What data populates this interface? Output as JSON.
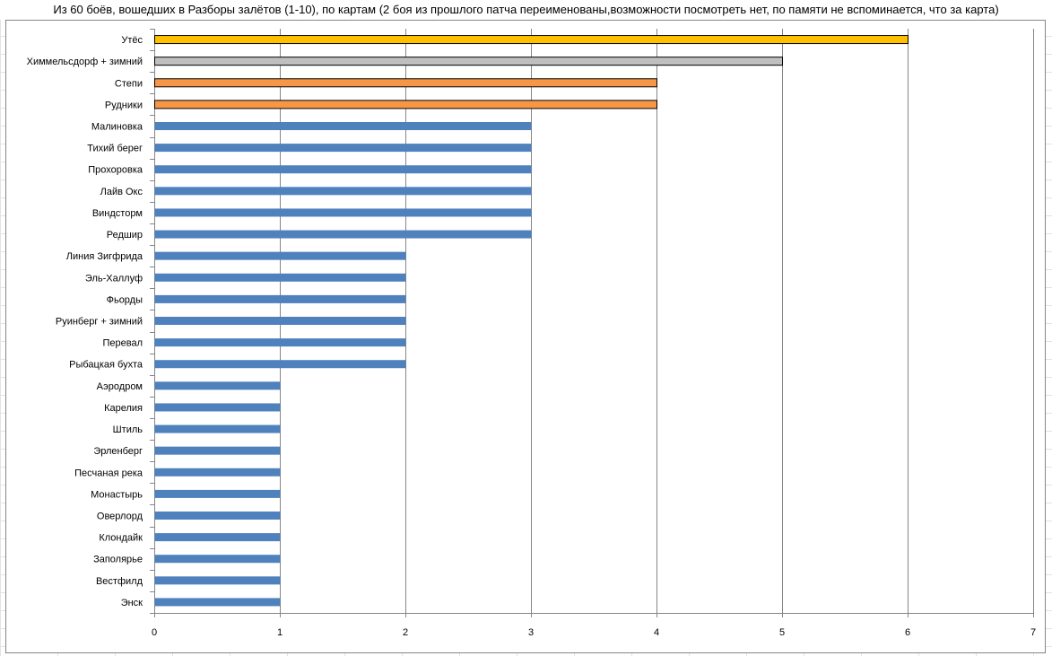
{
  "chart_data": {
    "type": "bar",
    "orientation": "horizontal",
    "title": "Из 60 боёв, вошедших в Разборы залётов (1-10), по картам (2 боя из прошлого патча переименованы,возможности посмотреть нет, по памяти не вспоминается, что за карта)",
    "xlabel": "",
    "ylabel": "",
    "xlim": [
      0,
      7
    ],
    "xticks": [
      0,
      1,
      2,
      3,
      4,
      5,
      6,
      7
    ],
    "grid": "vertical",
    "legend": "none",
    "categories": [
      "Утёс",
      "Химмельсдорф + зимний",
      "Степи",
      "Рудники",
      "Малиновка",
      "Тихий берег",
      "Прохоровка",
      "Лайв Окс",
      "Виндсторм",
      "Редшир",
      "Линия Зигфрида",
      "Эль-Халлуф",
      "Фьорды",
      "Руинберг + зимний",
      "Перевал",
      "Рыбацкая бухта",
      "Аэродром",
      "Карелия",
      "Штиль",
      "Эрленберг",
      "Песчаная река",
      "Монастырь",
      "Оверлорд",
      "Клондайк",
      "Заполярье",
      "Вестфилд",
      "Энск"
    ],
    "values": [
      6,
      5,
      4,
      4,
      3,
      3,
      3,
      3,
      3,
      3,
      2,
      2,
      2,
      2,
      2,
      2,
      1,
      1,
      1,
      1,
      1,
      1,
      1,
      1,
      1,
      1,
      1
    ],
    "colors": [
      "#FFC000",
      "#BFBFBF",
      "#F79646",
      "#F79646",
      "#4F81BD",
      "#4F81BD",
      "#4F81BD",
      "#4F81BD",
      "#4F81BD",
      "#4F81BD",
      "#4F81BD",
      "#4F81BD",
      "#4F81BD",
      "#4F81BD",
      "#4F81BD",
      "#4F81BD",
      "#4F81BD",
      "#4F81BD",
      "#4F81BD",
      "#4F81BD",
      "#4F81BD",
      "#4F81BD",
      "#4F81BD",
      "#4F81BD",
      "#4F81BD",
      "#4F81BD",
      "#4F81BD"
    ],
    "outlined": [
      true,
      true,
      true,
      true,
      false,
      false,
      false,
      false,
      false,
      false,
      false,
      false,
      false,
      false,
      false,
      false,
      false,
      false,
      false,
      false,
      false,
      false,
      false,
      false,
      false,
      false,
      false
    ]
  }
}
